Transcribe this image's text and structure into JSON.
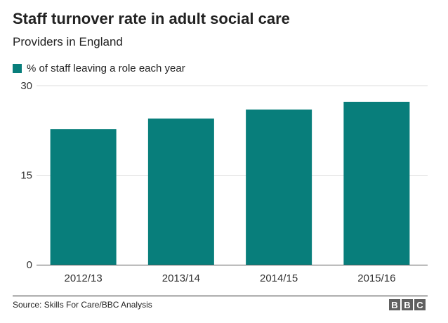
{
  "chart_data": {
    "type": "bar",
    "title": "Staff turnover rate in adult social care",
    "subtitle": "Providers in England",
    "categories": [
      "2012/13",
      "2013/14",
      "2014/15",
      "2015/16"
    ],
    "series": [
      {
        "name": "% of staff leaving a role each year",
        "values": [
          22.7,
          24.5,
          26.0,
          27.3
        ],
        "color": "#087e7b"
      }
    ],
    "y_ticks": [
      "30",
      "15",
      "0"
    ],
    "ylim": [
      0,
      30
    ],
    "grid": true,
    "legend_position": "top-left"
  },
  "footer": {
    "source": "Source: Skills For Care/BBC Analysis",
    "logo_letters": [
      "B",
      "B",
      "C"
    ]
  }
}
